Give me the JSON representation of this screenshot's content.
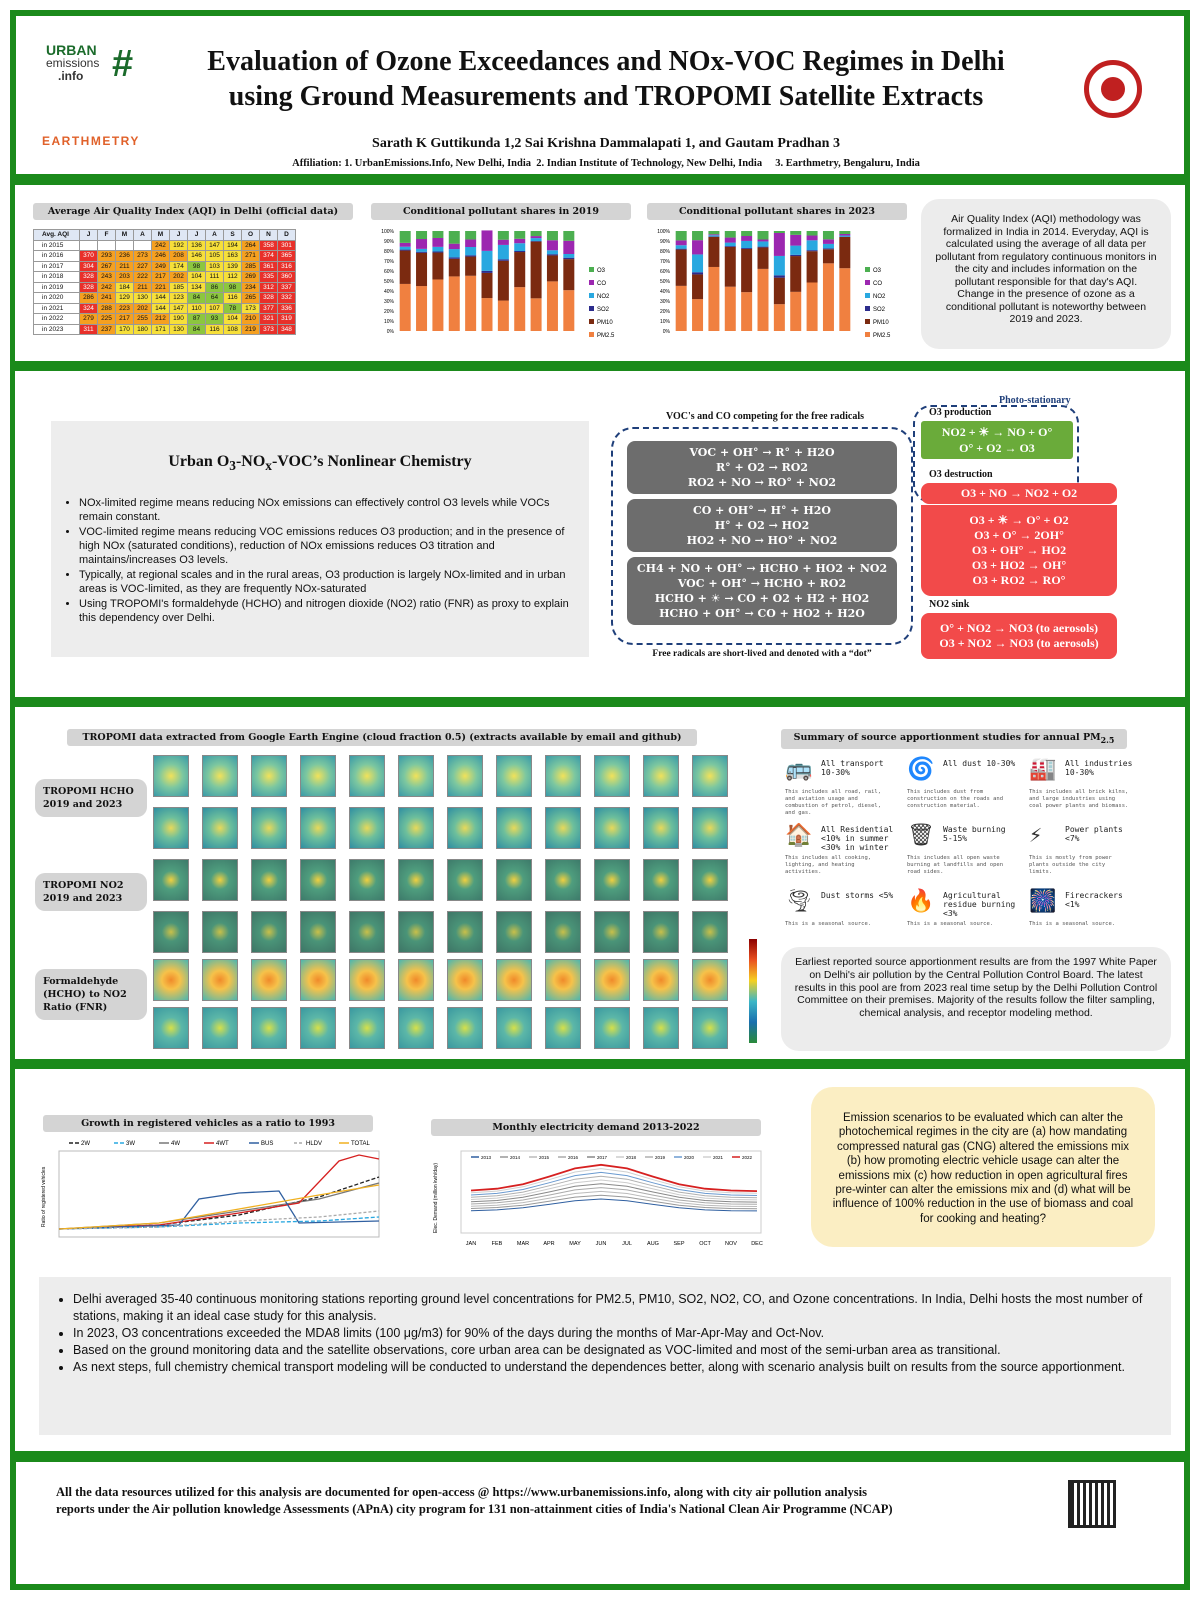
{
  "header": {
    "title_line1": "Evaluation of Ozone Exceedances and NOx-VOC Regimes in Delhi",
    "title_line2": "using Ground Measurements and TROPOMI Satellite Extracts",
    "authors": "Sarath K Guttikunda 1,2 Sai Krishna Dammalapati 1, and Gautam Pradhan 3",
    "affiliation": "Affiliation: 1. UrbanEmissions.Info, New Delhi, India  2. Indian Institute of Technology, New Delhi, India     3. Earthmetry, Bengaluru, India",
    "logo_urban": "URBAN",
    "logo_emissions": "emissions",
    "logo_info": ".info",
    "logo_earthmetry": "EARTHMETRY"
  },
  "aqi_table": {
    "title": "Average Air Quality Index (AQI) in Delhi (official data)",
    "header": [
      "Avg. AQI",
      "J",
      "F",
      "M",
      "A",
      "M",
      "J",
      "J",
      "A",
      "S",
      "O",
      "N",
      "D"
    ],
    "rows": [
      {
        "label": "in 2015",
        "values": [
          "",
          "",
          "",
          "",
          "242",
          "192",
          "136",
          "147",
          "194",
          "264",
          "358",
          "301"
        ]
      },
      {
        "label": "in 2016",
        "values": [
          "370",
          "293",
          "236",
          "273",
          "246",
          "208",
          "146",
          "105",
          "163",
          "271",
          "374",
          "365"
        ]
      },
      {
        "label": "in 2017",
        "values": [
          "304",
          "267",
          "211",
          "227",
          "249",
          "174",
          "98",
          "103",
          "139",
          "285",
          "361",
          "316"
        ]
      },
      {
        "label": "in 2018",
        "values": [
          "328",
          "243",
          "203",
          "222",
          "217",
          "202",
          "104",
          "111",
          "112",
          "269",
          "335",
          "360"
        ]
      },
      {
        "label": "in 2019",
        "values": [
          "328",
          "242",
          "184",
          "211",
          "221",
          "185",
          "134",
          "86",
          "98",
          "234",
          "312",
          "337"
        ]
      },
      {
        "label": "in 2020",
        "values": [
          "286",
          "241",
          "129",
          "130",
          "144",
          "123",
          "84",
          "64",
          "116",
          "265",
          "328",
          "332"
        ]
      },
      {
        "label": "in 2021",
        "values": [
          "324",
          "288",
          "223",
          "202",
          "144",
          "147",
          "110",
          "107",
          "78",
          "173",
          "377",
          "336"
        ]
      },
      {
        "label": "in 2022",
        "values": [
          "279",
          "225",
          "217",
          "255",
          "212",
          "190",
          "87",
          "93",
          "104",
          "210",
          "321",
          "319"
        ]
      },
      {
        "label": "in 2023",
        "values": [
          "311",
          "237",
          "170",
          "180",
          "171",
          "130",
          "84",
          "116",
          "108",
          "219",
          "373",
          "348"
        ]
      }
    ]
  },
  "chart_2019": {
    "title": "Conditional pollutant shares in 2019",
    "yticks": [
      "100%",
      "90%",
      "80%",
      "70%",
      "60%",
      "50%",
      "40%",
      "30%",
      "20%",
      "10%",
      "0%"
    ],
    "legend": [
      "O3",
      "CO",
      "NO2",
      "SO2",
      "PM10",
      "PM2.5"
    ]
  },
  "chart_2023": {
    "title": "Conditional pollutant shares in 2023",
    "yticks": [
      "100%",
      "90%",
      "80%",
      "70%",
      "60%",
      "50%",
      "40%",
      "30%",
      "20%",
      "10%",
      "0%"
    ],
    "legend": [
      "O3",
      "CO",
      "NO2",
      "SO2",
      "PM10",
      "PM2.5"
    ]
  },
  "aqi_note": "Air Quality Index (AQI) methodology was formalized in India in 2014. Everyday, AQI is calculated using the average of all data per pollutant from regulatory continuous monitors in the city and includes information on the pollutant responsible for that day's AQI. Change in the presence of ozone as a conditional pollutant is noteworthy between 2019 and 2023.",
  "chemistry": {
    "heading": "Urban O3-NOx-VOC's Nonlinear Chemistry",
    "bullets": [
      "NOx-limited regime means reducing NOx emissions can effectively control O3 levels while VOCs remain constant.",
      "VOC-limited regime means reducing VOC emissions reduces O3 production; and in the presence of high NOx (saturated conditions), reduction of NOx emissions reduces O3 titration and maintains/increases O3 levels.",
      "Typically, at regional scales and in the rural areas, O3 production is largely NOx-limited and in urban areas is VOC-limited, as they are frequently NOx-saturated",
      "Using TROPOMI's formaldehyde (HCHO) and nitrogen dioxide (NO2) ratio (FNR) as proxy to explain this dependency over Delhi."
    ],
    "voc_title": "VOC's and CO competing for the free radicals",
    "box1": [
      "VOC + OH° → R° + H2O",
      "R° + O2 → RO2",
      "RO2 + NO → RO° + NO2"
    ],
    "box2": [
      "CO + OH° → H° + H2O",
      "H° + O2 → HO2",
      "HO2 + NO → HO° + NO2"
    ],
    "box3": [
      "CH4 + NO + OH° → HCHO + HO2 + NO2",
      "VOC + OH° → HCHO + RO2",
      "HCHO + ☀ → CO + O2 + H2 + HO2",
      "HCHO + OH° → CO + HO2 + H2O"
    ],
    "free_radicals_note": "Free radicals are short-lived and denoted with a “dot”",
    "photo_stationary": "Photo-stationary",
    "o3_production_label": "O3 production",
    "o3_production": [
      "NO2 + ☀ → NO + O°",
      "O° + O2 → O3"
    ],
    "o3_destruction_label": "O3 destruction",
    "o3_destruction_top": "O3 + NO → NO2 + O2",
    "o3_destruction": [
      "O3 + ☀ → O° + O2",
      "O3 + O° → 2OH°",
      "O3 + OH° → HO2",
      "O3 + HO2 → OH°",
      "O3 + RO2 → RO°"
    ],
    "no2_sink_label": "NO2 sink",
    "no2_sink": [
      "O° + NO2 → NO3 (to aerosols)",
      "O3 + NO2 → NO3 (to aerosols)"
    ]
  },
  "tropomi": {
    "title": "TROPOMI data extracted from Google Earth Engine (cloud fraction 0.5) (extracts available by email and github)",
    "label_hcho": "TROPOMI HCHO 2019 and 2023",
    "label_no2": "TROPOMI NO2 2019 and 2023",
    "label_fnr": "Formaldehyde (HCHO) to NO2 Ratio (FNR)"
  },
  "source_app": {
    "title": "Summary of source apportionment studies for annual PM2.5",
    "items": [
      {
        "icon": "bus-icon",
        "glyph": "🚌",
        "title": "All transport 10-30%",
        "desc": "This includes all road, rail, and aviation usage and combustion of petrol, diesel, and gas."
      },
      {
        "icon": "dust-icon",
        "glyph": "🌀",
        "title": "All dust 10-30%",
        "desc": "This includes dust from construction on the roads and construction material."
      },
      {
        "icon": "factory-icon",
        "glyph": "🏭",
        "title": "All industries 10-30%",
        "desc": "This includes all brick kilns, and large industries using coal power plants and biomass."
      },
      {
        "icon": "house-icon",
        "glyph": "🏠",
        "title": "All Residential <10% in summer <30% in winter",
        "desc": "This includes all cooking, lighting, and heating activities."
      },
      {
        "icon": "waste-icon",
        "glyph": "🗑",
        "title": "Waste burning 5-15%",
        "desc": "This includes all open waste burning at landfills and open road sides."
      },
      {
        "icon": "powerplant-icon",
        "glyph": "⚡",
        "title": "Power plants <7%",
        "desc": "This is mostly from power plants outside the city limits."
      },
      {
        "icon": "duststorm-icon",
        "glyph": "🌪",
        "title": "Dust storms <5%",
        "desc": "This is a seasonal source."
      },
      {
        "icon": "fire-icon",
        "glyph": "🔥",
        "title": "Agricultural residue burning <3%",
        "desc": "This is a seasonal source."
      },
      {
        "icon": "firecracker-icon",
        "glyph": "🎆",
        "title": "Firecrackers <1%",
        "desc": "This is a seasonal source."
      }
    ],
    "note": "Earliest reported source apportionment results are from the 1997 White Paper on Delhi's air pollution by the Central Pollution Control Board.  The latest results in this pool are from 2023 real time setup by the Delhi Pollution Control Committee on their premises. Majority of the results follow the filter sampling, chemical analysis, and receptor modeling method."
  },
  "vehicles": {
    "title": "Growth in registered vehicles as a ratio to 1993",
    "ylabel": "Ratio of registered vehicles",
    "legend": [
      "2W",
      "3W",
      "4W",
      "4WT",
      "BUS",
      "HLDV",
      "TOTAL"
    ]
  },
  "electricity": {
    "title": "Monthly electricity demand 2013-2022",
    "ylabel": "Elec. Demand (million kwh/day)",
    "months": [
      "JAN",
      "FEB",
      "MAR",
      "APR",
      "MAY",
      "JUN",
      "JUL",
      "AUG",
      "SEP",
      "OCT",
      "NOV",
      "DEC"
    ],
    "legend": [
      "2013",
      "2014",
      "2015",
      "2016",
      "2017",
      "2018",
      "2019",
      "2020",
      "2021",
      "2022"
    ]
  },
  "scenarios": "Emission scenarios to be evaluated which can alter the photochemical regimes in the city are (a) how mandating compressed natural gas (CNG) altered the emissions mix (b) how promoting electric vehicle usage can alter the emissions mix (c) how reduction in open agricultural fires pre-winter can alter the emissions mix and (d) what will be influence of 100% reduction in the use of biomass and coal for cooking and heating?",
  "conclusions": [
    "Delhi averaged 35-40 continuous monitoring stations reporting ground level concentrations for PM2.5, PM10, SO2, NO2, CO, and Ozone concentrations. In India, Delhi hosts the most number of stations, making it an ideal case study for this analysis.",
    "In 2023, O3 concentrations exceeded the MDA8 limits (100 μg/m3) for 90% of the days during the months of Mar-Apr-May and Oct-Nov.",
    "Based on the ground monitoring data and the satellite observations, core urban area can be designated as VOC-limited and most of the semi-urban area as transitional.",
    "As next steps, full chemistry chemical transport modeling will be conducted to understand the dependences better, along with scenario analysis built on results from the source apportionment."
  ],
  "footer": "All the data resources utilized for this analysis are documented for open-access @ https://www.urbanemissions.info, along with city air pollution analysis reports under the Air pollution knowledge Assessments (APnA) city program for 131 non-attainment cities of India's National Clean Air Programme (NCAP)",
  "colors": {
    "frame": "#1b8a1b",
    "red": "#f24a4a",
    "green": "#6aab3a",
    "o3": "#4caf50",
    "co": "#9c27b0",
    "no2": "#29a8e0",
    "so2": "#2c2c8c",
    "pm10": "#7b2a10",
    "pm25": "#f08040"
  }
}
